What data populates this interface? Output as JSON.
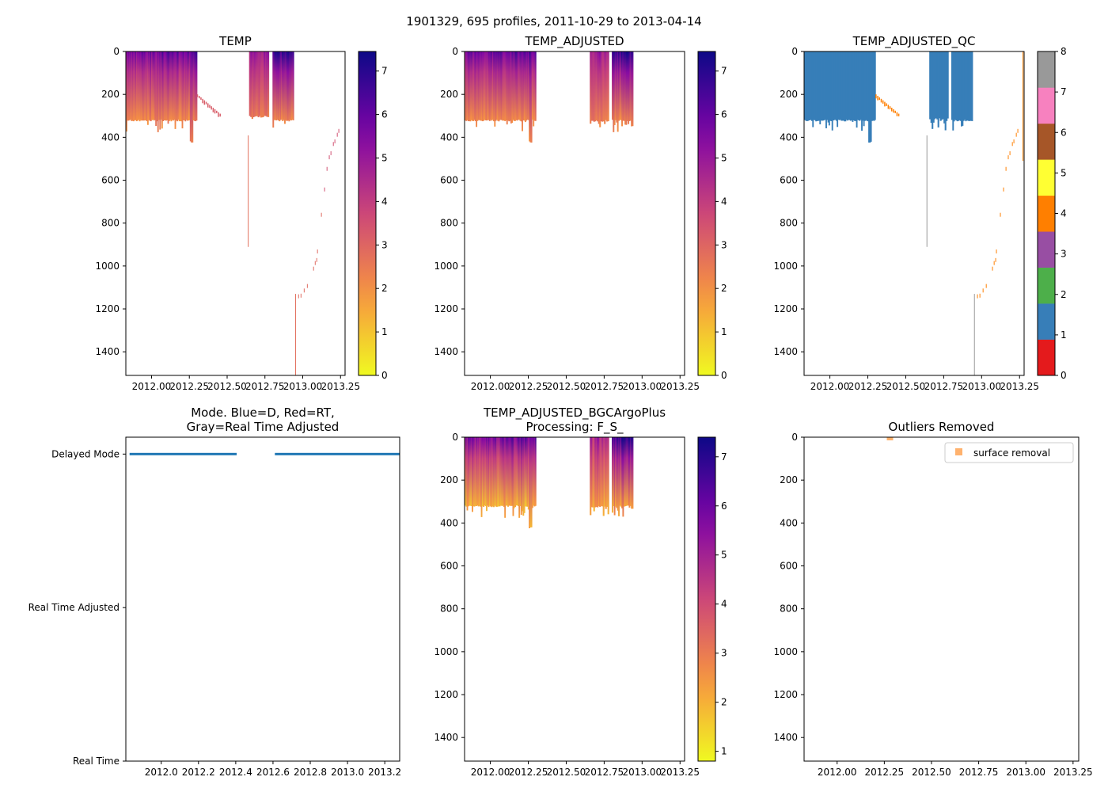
{
  "suptitle": "1901329, 695 profiles, 2011-10-29 to 2013-04-14",
  "colors": {
    "qc_good": "#377eb8",
    "qc_bad": "#ff7f00",
    "mode_line": "#1f77b4",
    "outlier": "#ffb26e",
    "thin_line": "#999999"
  },
  "chart_data": [
    {
      "type": "heatmap",
      "title": [
        "TEMP"
      ],
      "cmap": "plasma_r",
      "xlim": [
        2011.83,
        2013.28
      ],
      "ylim": [
        1510,
        0
      ],
      "xticks": [
        2012.0,
        2012.25,
        2012.5,
        2012.75,
        2013.0,
        2013.25
      ],
      "xticklabels": [
        "2012.00",
        "2012.25",
        "2012.50",
        "2012.75",
        "2013.00",
        "2013.25"
      ],
      "yticks": [
        0,
        200,
        400,
        600,
        800,
        1000,
        1200,
        1400
      ],
      "yticklabels": [
        "0",
        "200",
        "400",
        "600",
        "800",
        "1000",
        "1200",
        "1400"
      ],
      "colorbar": {
        "min": 0,
        "max": 7.45,
        "ticks": [
          0,
          1,
          2,
          3,
          4,
          5,
          6,
          7
        ],
        "ticklabels": [
          "0",
          "1",
          "2",
          "3",
          "4",
          "5",
          "6",
          "7"
        ]
      },
      "segments": [
        {
          "t0": 2011.83,
          "t1": 2012.3,
          "n": 70,
          "depth_max": 318,
          "surface": 5.6,
          "deep": 2.2
        },
        {
          "t0": 2012.645,
          "t1": 2012.775,
          "n": 16,
          "depth_max": 300,
          "surface": 4.6,
          "deep": 2.6
        },
        {
          "t0": 2012.8,
          "t1": 2012.94,
          "n": 20,
          "depth_max": 318,
          "surface": 6.6,
          "deep": 2.3
        }
      ],
      "trail": {
        "t0": 2012.3,
        "t1": 2012.45,
        "d0": 200,
        "d1": 290,
        "value": 3.2
      },
      "lines": [
        {
          "t": 2012.637,
          "d0": 391,
          "d1": 911,
          "value": 2.8
        },
        {
          "t": 2012.95,
          "d0": 1130,
          "d1": 1510,
          "value": 2.8
        }
      ],
      "points": [
        [
          2013.236,
          361
        ],
        [
          2013.226,
          379
        ],
        [
          2013.21,
          410
        ],
        [
          2013.2,
          422
        ],
        [
          2013.184,
          465
        ],
        [
          2013.173,
          484
        ],
        [
          2013.158,
          538
        ],
        [
          2013.142,
          634
        ],
        [
          2013.121,
          752
        ],
        [
          2013.095,
          923
        ],
        [
          2013.09,
          963
        ],
        [
          2013.08,
          977
        ],
        [
          2013.069,
          1003
        ],
        [
          2013.028,
          1084
        ],
        [
          2013.007,
          1105
        ],
        [
          2012.986,
          1129
        ],
        [
          2012.97,
          1132
        ]
      ]
    },
    {
      "type": "heatmap",
      "title": [
        "TEMP_ADJUSTED"
      ],
      "cmap": "plasma_r",
      "xlim": [
        2011.83,
        2013.28
      ],
      "ylim": [
        1510,
        0
      ],
      "xticks": [
        2012.0,
        2012.25,
        2012.5,
        2012.75,
        2013.0,
        2013.25
      ],
      "xticklabels": [
        "2012.00",
        "2012.25",
        "2012.50",
        "2012.75",
        "2013.00",
        "2013.25"
      ],
      "yticks": [
        0,
        200,
        400,
        600,
        800,
        1000,
        1200,
        1400
      ],
      "yticklabels": [
        "0",
        "200",
        "400",
        "600",
        "800",
        "1000",
        "1200",
        "1400"
      ],
      "colorbar": {
        "min": 0,
        "max": 7.45,
        "ticks": [
          0,
          1,
          2,
          3,
          4,
          5,
          6,
          7
        ],
        "ticklabels": [
          "0",
          "1",
          "2",
          "3",
          "4",
          "5",
          "6",
          "7"
        ]
      },
      "segments": [
        {
          "t0": 2011.83,
          "t1": 2012.3,
          "n": 70,
          "depth_max": 318,
          "surface": 5.6,
          "deep": 2.2
        },
        {
          "t0": 2012.655,
          "t1": 2012.78,
          "n": 16,
          "depth_max": 320,
          "surface": 4.6,
          "deep": 2.4
        },
        {
          "t0": 2012.8,
          "t1": 2012.94,
          "n": 20,
          "depth_max": 318,
          "surface": 6.6,
          "deep": 2.3
        }
      ]
    },
    {
      "type": "heatmap",
      "title": [
        "TEMP_ADJUSTED_QC"
      ],
      "cmap": "Set1",
      "xlim": [
        2011.83,
        2013.28
      ],
      "ylim": [
        1510,
        0
      ],
      "xticks": [
        2012.0,
        2012.25,
        2012.5,
        2012.75,
        2013.0,
        2013.25
      ],
      "xticklabels": [
        "2012.00",
        "2012.25",
        "2012.50",
        "2012.75",
        "2013.00",
        "2013.25"
      ],
      "yticks": [
        0,
        200,
        400,
        600,
        800,
        1000,
        1200,
        1400
      ],
      "yticklabels": [
        "0",
        "200",
        "400",
        "600",
        "800",
        "1000",
        "1200",
        "1400"
      ],
      "colorbar": {
        "min": 0,
        "max": 8,
        "ticks": [
          0,
          1,
          2,
          3,
          4,
          5,
          6,
          7,
          8
        ],
        "ticklabels": [
          "0",
          "1",
          "2",
          "3",
          "4",
          "5",
          "6",
          "7",
          "8"
        ],
        "classes": [
          "#e41a1c",
          "#377eb8",
          "#4daf4a",
          "#984ea3",
          "#ff7f00",
          "#ffff33",
          "#a65628",
          "#f781bf",
          "#999999"
        ]
      },
      "segments": [
        {
          "t0": 2011.83,
          "t1": 2012.3,
          "n": 70,
          "depth_max": 318,
          "qc": 1
        },
        {
          "t0": 2012.655,
          "t1": 2012.78,
          "n": 16,
          "depth_max": 310,
          "qc": 1
        },
        {
          "t0": 2012.8,
          "t1": 2012.94,
          "n": 20,
          "depth_max": 318,
          "qc": 1
        }
      ],
      "trail": {
        "t0": 2012.3,
        "t1": 2012.45,
        "d0": 200,
        "d1": 290,
        "qc": 4
      },
      "lines": [
        {
          "t": 2012.637,
          "d0": 391,
          "d1": 911,
          "qc": 8
        },
        {
          "t": 2012.95,
          "d0": 1130,
          "d1": 1510,
          "qc": 8
        },
        {
          "t": 2013.27,
          "d0": 0,
          "d1": 510,
          "qc": 4
        }
      ],
      "points": [
        [
          2013.236,
          361
        ],
        [
          2013.226,
          379
        ],
        [
          2013.21,
          410
        ],
        [
          2013.2,
          422
        ],
        [
          2013.184,
          465
        ],
        [
          2013.173,
          484
        ],
        [
          2013.158,
          538
        ],
        [
          2013.142,
          634
        ],
        [
          2013.121,
          752
        ],
        [
          2013.095,
          923
        ],
        [
          2013.09,
          963
        ],
        [
          2013.08,
          977
        ],
        [
          2013.069,
          1003
        ],
        [
          2013.028,
          1084
        ],
        [
          2013.007,
          1105
        ],
        [
          2012.986,
          1129
        ],
        [
          2012.97,
          1132
        ]
      ]
    },
    {
      "type": "line",
      "title": [
        "Mode. Blue=D, Red=RT,",
        "Gray=Real Time Adjusted"
      ],
      "xlim": [
        2011.81,
        2013.28
      ],
      "ylim": [
        0,
        2.11
      ],
      "xticks": [
        2012.0,
        2012.2,
        2012.4,
        2012.6,
        2012.8,
        2013.0,
        2013.2
      ],
      "xticklabels": [
        "2012.0",
        "2012.2",
        "2012.4",
        "2012.6",
        "2012.8",
        "2013.0",
        "2013.2"
      ],
      "yticks": [
        0,
        1,
        2
      ],
      "yticklabels": [
        "Real Time",
        "Real Time Adjusted",
        "Delayed Mode"
      ],
      "series": [
        {
          "name": "Delayed Mode",
          "value": 2,
          "ranges": [
            [
              2011.83,
              2012.405
            ],
            [
              2012.61,
              2013.28
            ]
          ]
        }
      ]
    },
    {
      "type": "heatmap",
      "title": [
        "TEMP_ADJUSTED_BGCArgoPlus",
        "Processing: F_S_"
      ],
      "cmap": "plasma_r",
      "xlim": [
        2011.83,
        2013.28
      ],
      "ylim": [
        1510,
        0
      ],
      "xticks": [
        2012.0,
        2012.25,
        2012.5,
        2012.75,
        2013.0,
        2013.25
      ],
      "xticklabels": [
        "2012.00",
        "2012.25",
        "2012.50",
        "2012.75",
        "2013.00",
        "2013.25"
      ],
      "yticks": [
        0,
        200,
        400,
        600,
        800,
        1000,
        1200,
        1400
      ],
      "yticklabels": [
        "0",
        "200",
        "400",
        "600",
        "800",
        "1000",
        "1200",
        "1400"
      ],
      "colorbar": {
        "min": 0.8,
        "max": 7.4,
        "ticks": [
          1,
          2,
          3,
          4,
          5,
          6,
          7
        ],
        "ticklabels": [
          "1",
          "2",
          "3",
          "4",
          "5",
          "6",
          "7"
        ]
      },
      "segments": [
        {
          "t0": 2011.83,
          "t1": 2012.3,
          "n": 70,
          "depth_max": 318,
          "surface": 5.6,
          "deep": 2.0
        },
        {
          "t0": 2012.655,
          "t1": 2012.78,
          "n": 16,
          "depth_max": 320,
          "surface": 4.6,
          "deep": 2.3
        },
        {
          "t0": 2012.8,
          "t1": 2012.94,
          "n": 20,
          "depth_max": 318,
          "surface": 6.6,
          "deep": 2.3
        }
      ]
    },
    {
      "type": "scatter",
      "title": [
        "Outliers Removed"
      ],
      "xlim": [
        2011.825,
        2013.28
      ],
      "ylim": [
        1510,
        0
      ],
      "xticks": [
        2012.0,
        2012.25,
        2012.5,
        2012.75,
        2013.0,
        2013.25
      ],
      "xticklabels": [
        "2012.00",
        "2012.25",
        "2012.50",
        "2012.75",
        "2013.00",
        "2013.25"
      ],
      "yticks": [
        0,
        200,
        400,
        600,
        800,
        1000,
        1200,
        1400
      ],
      "yticklabels": [
        "0",
        "200",
        "400",
        "600",
        "800",
        "1000",
        "1200",
        "1400"
      ],
      "legend": {
        "position": "top-right",
        "entries": [
          "surface removal"
        ]
      },
      "series": [
        {
          "name": "surface removal",
          "points": [
            [
              2012.28,
              0
            ]
          ]
        }
      ]
    }
  ]
}
